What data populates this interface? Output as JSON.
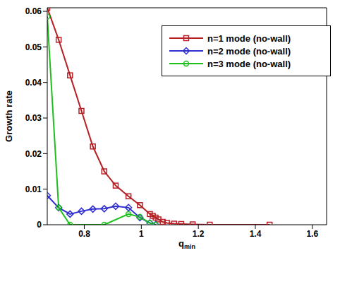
{
  "chart_data": {
    "type": "line",
    "x_label": "qmin",
    "y_label": "Growth rate",
    "xlim": [
      0.67,
      1.65
    ],
    "xticks": [
      0.8,
      1,
      1.2,
      1.4,
      1.6
    ],
    "ylim": [
      0,
      0.061
    ],
    "yticks": [
      0,
      0.01,
      0.02,
      0.03,
      0.04,
      0.05,
      0.06
    ],
    "grid": false,
    "legend": "upper right",
    "series": [
      {
        "name": "n=1 mode (no-wall)",
        "color": "#b51f24",
        "marker": "square",
        "x": [
          0.67,
          0.71,
          0.75,
          0.79,
          0.83,
          0.87,
          0.91,
          0.955,
          0.995,
          1.03,
          1.04,
          1.05,
          1.06,
          1.075,
          1.09,
          1.115,
          1.14,
          1.18,
          1.24,
          1.45
        ],
        "values": [
          0.061,
          0.052,
          0.042,
          0.032,
          0.022,
          0.015,
          0.011,
          0.008,
          0.0055,
          0.003,
          0.0025,
          0.002,
          0.0015,
          0.0008,
          0.0005,
          0.0003,
          0.0002,
          0.0001,
          0,
          0
        ]
      },
      {
        "name": "n=2 mode (no-wall)",
        "color": "#2f2fd0",
        "marker": "diamond",
        "x": [
          0.67,
          0.71,
          0.75,
          0.79,
          0.83,
          0.87,
          0.91,
          0.955,
          0.995,
          1.03,
          1.05
        ],
        "values": [
          0.0082,
          0.0048,
          0.003,
          0.0038,
          0.0044,
          0.0045,
          0.0052,
          0.0048,
          0.002,
          0.0005,
          0
        ]
      },
      {
        "name": "n=3 mode (no-wall)",
        "color": "#1fbf1f",
        "marker": "circle",
        "x": [
          0.67,
          0.71,
          0.75,
          0.87,
          0.955,
          0.995,
          1.03,
          1.05
        ],
        "values": [
          0.0585,
          0.0048,
          0,
          0,
          0.003,
          0.0022,
          0.0005,
          0
        ]
      }
    ]
  }
}
